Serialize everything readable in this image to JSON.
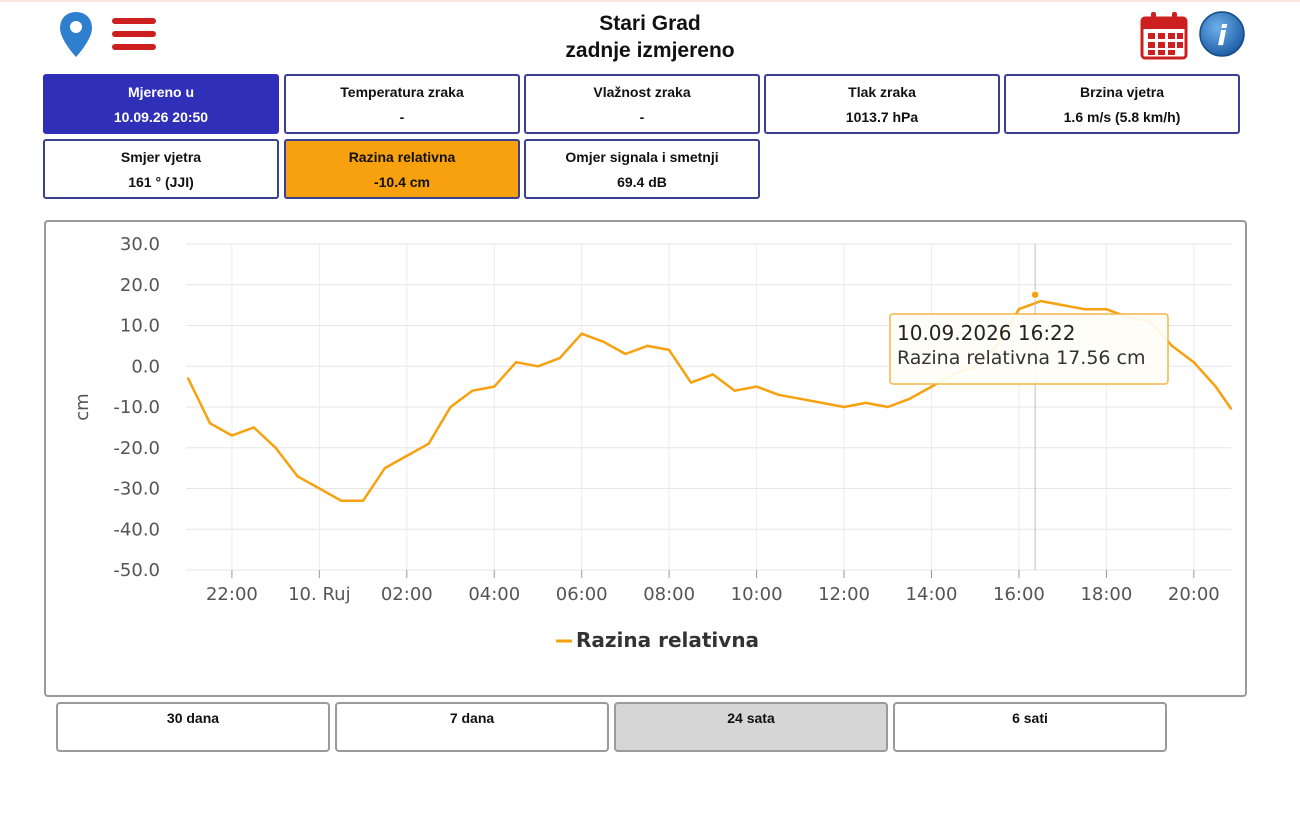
{
  "header": {
    "title": "Stari Grad",
    "subtitle": "zadnje izmjereno",
    "location_icon": "map-pin-icon",
    "menu_icon": "hamburger-menu-icon",
    "calendar_icon": "calendar-icon",
    "info_icon": "info-icon"
  },
  "tiles": [
    {
      "label": "Mjereno u",
      "value": "10.09.26 20:50"
    },
    {
      "label": "Temperatura zraka",
      "value": "-"
    },
    {
      "label": "Vlažnost zraka",
      "value": "-"
    },
    {
      "label": "Tlak zraka",
      "value": "1013.7 hPa"
    },
    {
      "label": "Brzina vjetra",
      "value": "1.6 m/s (5.8 km/h)"
    },
    {
      "label": "Smjer vjetra",
      "value": "161 ° (JJI)"
    },
    {
      "label": "Razina relativna",
      "value": "-10.4 cm"
    },
    {
      "label": "Omjer signala i smetnji",
      "value": "69.4 dB"
    }
  ],
  "colors": {
    "accent_blue": "#2f2fb8",
    "accent_orange": "#f7a10e",
    "series": "#f7a10e",
    "icon_red": "#cc1f1f",
    "icon_blue": "#2f7fcf"
  },
  "chart_data": {
    "type": "line",
    "ylabel": "cm",
    "ylim": [
      -50,
      30
    ],
    "y_ticks": [
      "30.0",
      "20.0",
      "10.0",
      "0.0",
      "-10.0",
      "-20.0",
      "-30.0",
      "-40.0",
      "-50.0"
    ],
    "x_ticks": [
      "22:00",
      "10. Ruj",
      "02:00",
      "04:00",
      "06:00",
      "08:00",
      "10:00",
      "12:00",
      "14:00",
      "16:00",
      "18:00",
      "20:00"
    ],
    "x_range_hours": [
      20.95,
      44.85
    ],
    "grid": true,
    "legend_position": "bottom-center",
    "series": [
      {
        "name": "Razina relativna",
        "x_hours": [
          21.0,
          21.5,
          22.0,
          22.5,
          23.0,
          23.5,
          24.0,
          24.5,
          25.0,
          25.5,
          26.0,
          26.5,
          27.0,
          27.5,
          28.0,
          28.5,
          29.0,
          29.5,
          30.0,
          30.5,
          31.0,
          31.5,
          32.0,
          32.5,
          33.0,
          33.5,
          34.0,
          34.5,
          35.0,
          35.5,
          36.0,
          36.5,
          37.0,
          37.5,
          38.0,
          38.5,
          39.0,
          39.5,
          40.0,
          40.5,
          41.0,
          41.5,
          42.0,
          42.5,
          43.0,
          43.5,
          44.0,
          44.5,
          44.85
        ],
        "values": [
          -3,
          -14,
          -17,
          -15,
          -20,
          -27,
          -30,
          -33,
          -33,
          -25,
          -22,
          -19,
          -10,
          -6,
          -5,
          1,
          0,
          2,
          8,
          6,
          3,
          5,
          4,
          -4,
          -2,
          -6,
          -5,
          -7,
          -8,
          -9,
          -10,
          -9,
          -10,
          -8,
          -5,
          -2,
          0,
          5,
          14,
          16,
          15,
          14,
          14,
          12,
          11,
          5,
          1,
          -5,
          -10.4
        ]
      }
    ],
    "tooltip": {
      "title": "10.09.2026 16:22",
      "text": "Razina relativna 17.56 cm",
      "x_hours": 40.37,
      "y": 17.56
    }
  },
  "ranges": [
    {
      "label": "30 dana",
      "active": false
    },
    {
      "label": "7 dana",
      "active": false
    },
    {
      "label": "24 sata",
      "active": true
    },
    {
      "label": "6 sati",
      "active": false
    }
  ]
}
